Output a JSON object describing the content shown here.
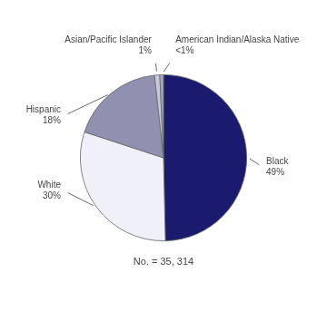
{
  "chart_data": {
    "type": "pie",
    "categories": [
      "Black",
      "White",
      "Hispanic",
      "Asian/Pacific Islander",
      "American Indian/Alaska Native"
    ],
    "values": [
      49,
      30,
      18,
      1,
      0.7
    ],
    "value_labels": [
      "49%",
      "30%",
      "18%",
      "1%",
      "<1%"
    ],
    "colors": [
      "#1a1a6e",
      "#f0f0f8",
      "#9090b0",
      "#c8c8dc",
      "#a8a8c4"
    ],
    "annotations": [
      "No. = 35, 314"
    ]
  }
}
